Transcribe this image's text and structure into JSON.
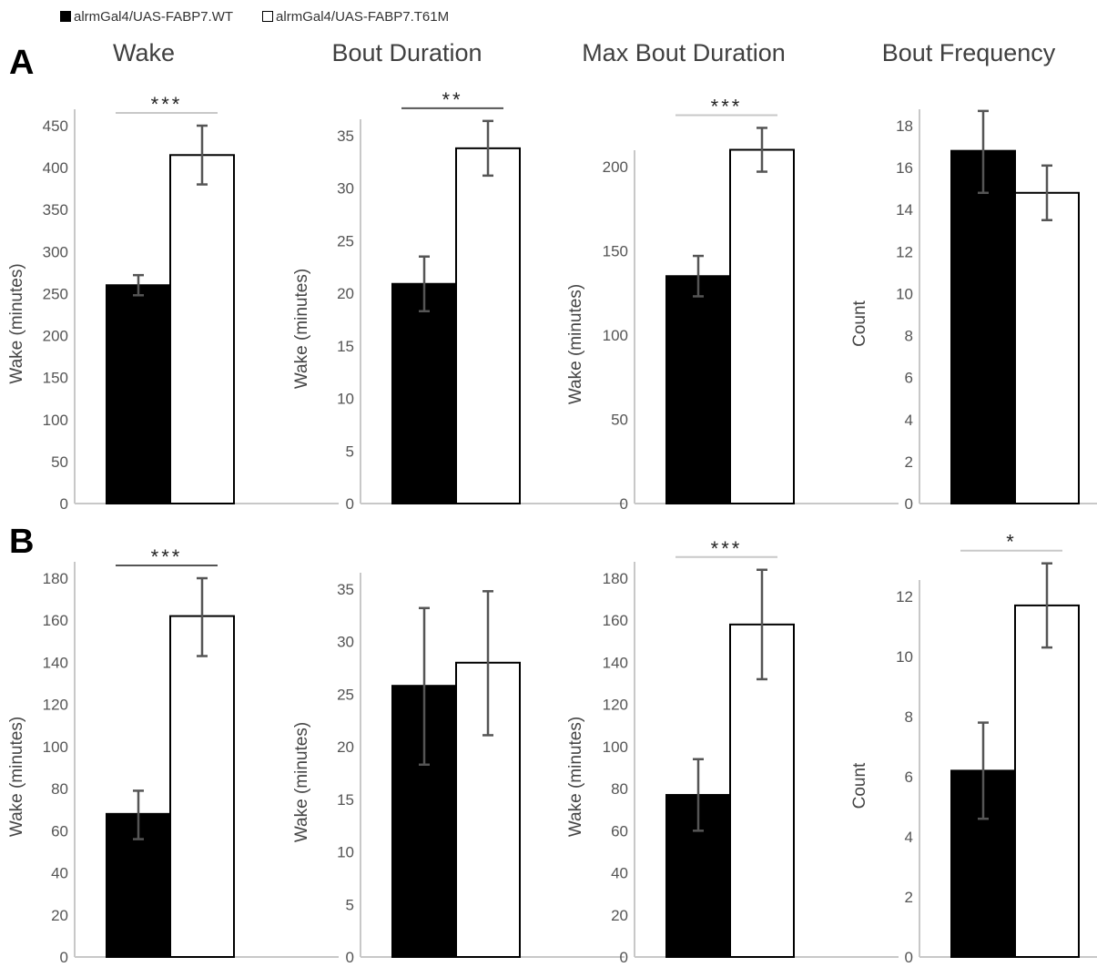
{
  "legend": [
    {
      "label": "alrmGal4/UAS-FABP7.WT",
      "color": "#000000"
    },
    {
      "label": "alrmGal4/UAS-FABP7.T61M",
      "color": "#ffffff"
    }
  ],
  "panels": {
    "a": "A",
    "b": "B"
  },
  "columns": [
    "Wake",
    "Bout Duration",
    "Max Bout Duration",
    "Bout Frequency"
  ],
  "chart_data": [
    {
      "type": "bar",
      "title": "Wake",
      "row": "A",
      "ylabel": "Wake (minutes)",
      "ylim": [
        0,
        450
      ],
      "yticks": [
        0,
        50,
        100,
        150,
        200,
        250,
        300,
        350,
        400,
        450
      ],
      "significance": "***",
      "series": [
        {
          "name": "alrmGal4/UAS-FABP7.WT",
          "value": 260,
          "err_low": 248,
          "err_high": 272
        },
        {
          "name": "alrmGal4/UAS-FABP7.T61M",
          "value": 415,
          "err_low": 380,
          "err_high": 450
        }
      ]
    },
    {
      "type": "bar",
      "title": "Bout Duration",
      "row": "A",
      "ylabel": "Wake (minutes)",
      "ylim": [
        0,
        35
      ],
      "yticks": [
        0,
        5,
        10,
        15,
        20,
        25,
        30,
        35
      ],
      "significance": "**",
      "series": [
        {
          "name": "alrmGal4/UAS-FABP7.WT",
          "value": 20.9,
          "err_low": 18.3,
          "err_high": 23.5
        },
        {
          "name": "alrmGal4/UAS-FABP7.T61M",
          "value": 33.8,
          "err_low": 31.2,
          "err_high": 36.4
        }
      ]
    },
    {
      "type": "bar",
      "title": "Max Bout Duration",
      "row": "A",
      "ylabel": "Wake (minutes)",
      "ylim": [
        0,
        200
      ],
      "yticks": [
        0,
        50,
        100,
        150,
        200
      ],
      "significance": "***",
      "series": [
        {
          "name": "alrmGal4/UAS-FABP7.WT",
          "value": 135,
          "err_low": 123,
          "err_high": 147
        },
        {
          "name": "alrmGal4/UAS-FABP7.T61M",
          "value": 210,
          "err_low": 197,
          "err_high": 223
        }
      ]
    },
    {
      "type": "bar",
      "title": "Bout Frequency",
      "row": "A",
      "ylabel": "Count",
      "ylim": [
        0,
        18
      ],
      "yticks": [
        0,
        2,
        4,
        6,
        8,
        10,
        12,
        14,
        16,
        18
      ],
      "significance": "",
      "series": [
        {
          "name": "alrmGal4/UAS-FABP7.WT",
          "value": 16.8,
          "err_low": 14.8,
          "err_high": 18.7
        },
        {
          "name": "alrmGal4/UAS-FABP7.T61M",
          "value": 14.8,
          "err_low": 13.5,
          "err_high": 16.1
        }
      ]
    },
    {
      "type": "bar",
      "title": "Wake",
      "row": "B",
      "ylabel": "Wake (minutes)",
      "ylim": [
        0,
        180
      ],
      "yticks": [
        0,
        20,
        40,
        60,
        80,
        100,
        120,
        140,
        160,
        180
      ],
      "significance": "***",
      "series": [
        {
          "name": "alrmGal4/UAS-FABP7.WT",
          "value": 68,
          "err_low": 56,
          "err_high": 79
        },
        {
          "name": "alrmGal4/UAS-FABP7.T61M",
          "value": 162,
          "err_low": 143,
          "err_high": 180
        }
      ]
    },
    {
      "type": "bar",
      "title": "Bout Duration",
      "row": "B",
      "ylabel": "Wake (minutes)",
      "ylim": [
        0,
        35
      ],
      "yticks": [
        0,
        5,
        10,
        15,
        20,
        25,
        30,
        35
      ],
      "significance": "",
      "series": [
        {
          "name": "alrmGal4/UAS-FABP7.WT",
          "value": 25.8,
          "err_low": 18.3,
          "err_high": 33.2
        },
        {
          "name": "alrmGal4/UAS-FABP7.T61M",
          "value": 28,
          "err_low": 21.1,
          "err_high": 34.8
        }
      ]
    },
    {
      "type": "bar",
      "title": "Max Bout Duration",
      "row": "B",
      "ylabel": "Wake (minutes)",
      "ylim": [
        0,
        180
      ],
      "yticks": [
        0,
        20,
        40,
        60,
        80,
        100,
        120,
        140,
        160,
        180
      ],
      "significance": "***",
      "series": [
        {
          "name": "alrmGal4/UAS-FABP7.WT",
          "value": 77,
          "err_low": 60,
          "err_high": 94
        },
        {
          "name": "alrmGal4/UAS-FABP7.T61M",
          "value": 158,
          "err_low": 132,
          "err_high": 184
        }
      ]
    },
    {
      "type": "bar",
      "title": "Bout Frequency",
      "row": "B",
      "ylabel": "Count",
      "ylim": [
        0,
        12
      ],
      "yticks": [
        0,
        2,
        4,
        6,
        8,
        10,
        12
      ],
      "significance": "*",
      "series": [
        {
          "name": "alrmGal4/UAS-FABP7.WT",
          "value": 6.2,
          "err_low": 4.6,
          "err_high": 7.8
        },
        {
          "name": "alrmGal4/UAS-FABP7.T61M",
          "value": 11.7,
          "err_low": 10.3,
          "err_high": 13.1
        }
      ]
    }
  ]
}
